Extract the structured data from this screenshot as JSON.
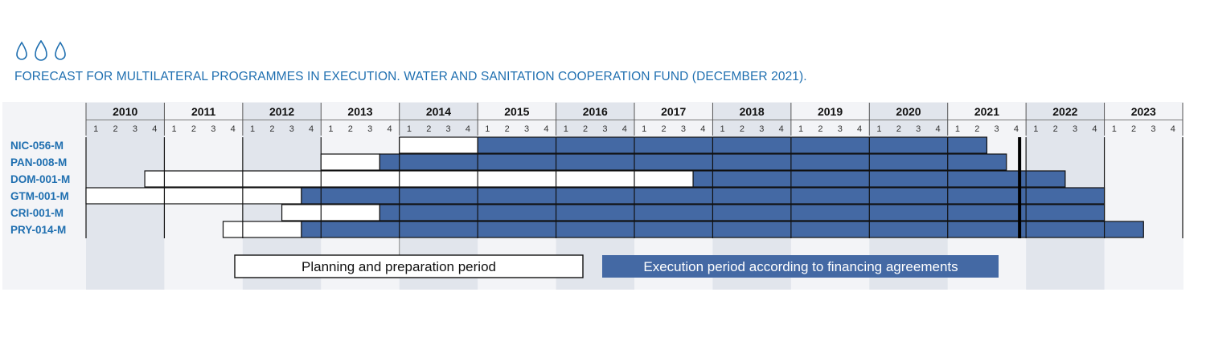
{
  "title": "FORECAST FOR MULTILATERAL PROGRAMMES IN EXECUTION. WATER AND SANITATION COOPERATION FUND (DECEMBER 2021).",
  "icons": [
    "water-drop-icon",
    "water-drop-icon",
    "water-drop-icon"
  ],
  "colors": {
    "accent": "#1f6fb0",
    "execution": "#4469a4",
    "shade": "#e1e5ec",
    "panel": "#f3f4f7"
  },
  "legend": {
    "planning": "Planning and preparation period",
    "execution": "Execution period according to financing agreements"
  },
  "chart_data": {
    "type": "gantt",
    "x_unit": "year quarter",
    "years": [
      2010,
      2011,
      2012,
      2013,
      2014,
      2015,
      2016,
      2017,
      2018,
      2019,
      2020,
      2021,
      2022,
      2023
    ],
    "quarters": [
      "1",
      "2",
      "3",
      "4"
    ],
    "xlim": [
      2010.0,
      2024.0
    ],
    "shaded_years": [
      2010,
      2012,
      2014,
      2016,
      2018,
      2020,
      2022
    ],
    "current_marker": 2022.0,
    "rows": [
      {
        "id": "NIC-056-M",
        "planning": [
          2014.0,
          2015.0
        ],
        "execution": [
          2015.0,
          2021.5
        ]
      },
      {
        "id": "PAN-008-M",
        "planning": [
          2013.0,
          2013.75
        ],
        "execution": [
          2013.75,
          2021.75
        ]
      },
      {
        "id": "DOM-001-M",
        "planning": [
          2010.75,
          2017.75
        ],
        "execution": [
          2017.75,
          2022.5
        ]
      },
      {
        "id": "GTM-001-M",
        "planning": [
          2010.0,
          2012.75
        ],
        "execution": [
          2012.75,
          2023.0
        ]
      },
      {
        "id": "CRI-001-M",
        "planning": [
          2012.5,
          2013.75
        ],
        "execution": [
          2013.75,
          2023.0
        ]
      },
      {
        "id": "PRY-014-M",
        "planning": [
          2011.75,
          2012.75
        ],
        "execution": [
          2012.75,
          2023.5
        ]
      }
    ]
  }
}
